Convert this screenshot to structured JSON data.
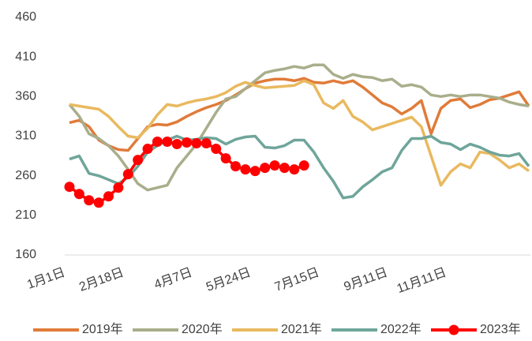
{
  "chart_data": {
    "type": "line",
    "categories": [
      "1月1日",
      null,
      null,
      null,
      null,
      null,
      "2月18日",
      null,
      null,
      null,
      null,
      null,
      null,
      "4月7日",
      null,
      null,
      null,
      null,
      null,
      "5月24日",
      null,
      null,
      null,
      null,
      null,
      null,
      "7月15日",
      null,
      null,
      null,
      null,
      null,
      null,
      "9月11日",
      null,
      null,
      null,
      null,
      null,
      "11月11日",
      null,
      null,
      null,
      null,
      null,
      null,
      null,
      null
    ],
    "series": [
      {
        "name": "2019年",
        "color": "#e07b39",
        "values": [
          327,
          330,
          322,
          305,
          298,
          293,
          292,
          307,
          322,
          325,
          324,
          328,
          335,
          341,
          346,
          350,
          355,
          362,
          370,
          377,
          380,
          382,
          382,
          380,
          383,
          378,
          377,
          380,
          377,
          380,
          372,
          362,
          352,
          347,
          338,
          345,
          355,
          313,
          345,
          355,
          357,
          346,
          350,
          356,
          358,
          362,
          366,
          348
        ]
      },
      {
        "name": "2020年",
        "color": "#a9ae8b",
        "values": [
          350,
          335,
          313,
          307,
          298,
          285,
          268,
          250,
          242,
          245,
          248,
          270,
          285,
          300,
          320,
          340,
          357,
          360,
          370,
          380,
          390,
          393,
          395,
          398,
          396,
          400,
          400,
          388,
          383,
          388,
          385,
          384,
          380,
          382,
          373,
          375,
          372,
          362,
          360,
          362,
          360,
          362,
          362,
          360,
          358,
          353,
          350,
          348
        ]
      },
      {
        "name": "2021年",
        "color": "#e9b95f",
        "values": [
          350,
          348,
          346,
          344,
          335,
          322,
          310,
          308,
          320,
          337,
          350,
          348,
          352,
          355,
          357,
          360,
          365,
          373,
          378,
          374,
          371,
          372,
          373,
          374,
          380,
          375,
          352,
          345,
          355,
          335,
          328,
          318,
          322,
          326,
          330,
          334,
          322,
          285,
          248,
          265,
          275,
          270,
          290,
          288,
          280,
          270,
          275,
          266
        ]
      },
      {
        "name": "2022年",
        "color": "#6fa59a",
        "values": [
          281,
          285,
          263,
          260,
          255,
          250,
          258,
          272,
          290,
          298,
          305,
          310,
          305,
          306,
          308,
          307,
          300,
          306,
          309,
          310,
          296,
          295,
          298,
          305,
          305,
          290,
          270,
          253,
          232,
          234,
          246,
          255,
          265,
          270,
          292,
          307,
          307,
          310,
          302,
          300,
          293,
          300,
          296,
          290,
          286,
          285,
          288,
          272
        ]
      },
      {
        "name": "2023年",
        "color": "#ff0000",
        "markers": true,
        "values": [
          246,
          237,
          229,
          226,
          234,
          245,
          262,
          280,
          294,
          303,
          303,
          300,
          302,
          301,
          301,
          294,
          282,
          272,
          268,
          266,
          270,
          273,
          270,
          268,
          273,
          null,
          null,
          null,
          null,
          null,
          null,
          null,
          null,
          null,
          null,
          null,
          null,
          null,
          null,
          null,
          null,
          null,
          null,
          null,
          null,
          null,
          null,
          null
        ]
      }
    ],
    "ylim": [
      160,
      460
    ],
    "yticks": [
      160,
      210,
      260,
      310,
      360,
      410,
      460
    ]
  }
}
